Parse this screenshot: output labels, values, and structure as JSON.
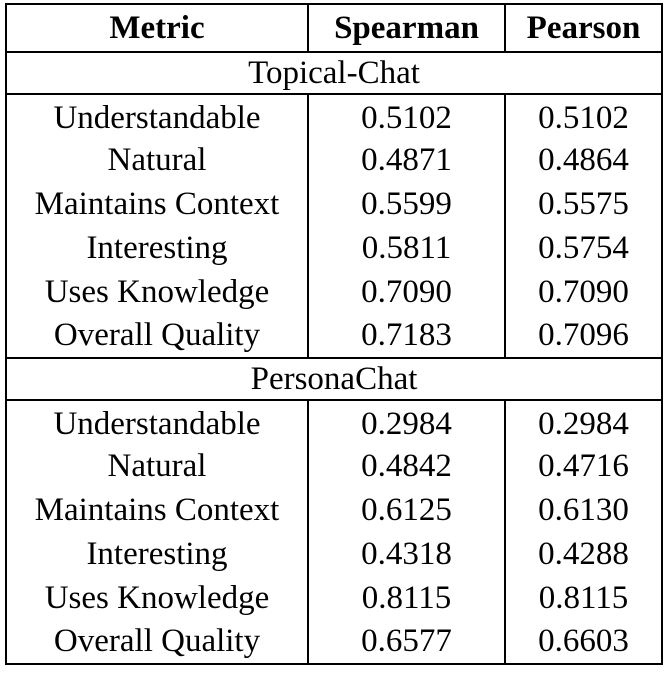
{
  "table": {
    "headers": [
      "Metric",
      "Spearman",
      "Pearson"
    ],
    "sections": [
      {
        "title": "Topical-Chat",
        "rows": [
          [
            "Understandable",
            "0.5102",
            "0.5102"
          ],
          [
            "Natural",
            "0.4871",
            "0.4864"
          ],
          [
            "Maintains Context",
            "0.5599",
            "0.5575"
          ],
          [
            "Interesting",
            "0.5811",
            "0.5754"
          ],
          [
            "Uses Knowledge",
            "0.7090",
            "0.7090"
          ],
          [
            "Overall Quality",
            "0.7183",
            "0.7096"
          ]
        ]
      },
      {
        "title": "PersonaChat",
        "rows": [
          [
            "Understandable",
            "0.2984",
            "0.2984"
          ],
          [
            "Natural",
            "0.4842",
            "0.4716"
          ],
          [
            "Maintains Context",
            "0.6125",
            "0.6130"
          ],
          [
            "Interesting",
            "0.4318",
            "0.4288"
          ],
          [
            "Uses Knowledge",
            "0.8115",
            "0.8115"
          ],
          [
            "Overall Quality",
            "0.6577",
            "0.6603"
          ]
        ]
      }
    ]
  }
}
